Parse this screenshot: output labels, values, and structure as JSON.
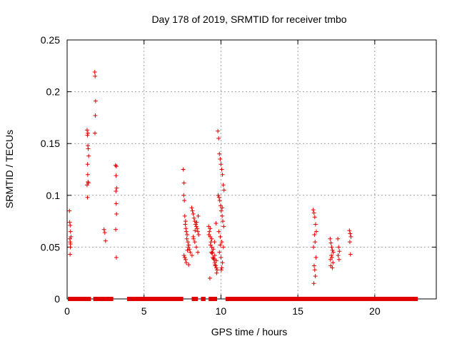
{
  "chart_data": {
    "type": "scatter",
    "title": "Day 178 of 2019, SRMTID for receiver tmbo",
    "xlabel": "GPS time / hours",
    "ylabel": "SRMTID / TECUs",
    "xlim": [
      0,
      24
    ],
    "ylim": [
      0,
      0.25
    ],
    "xticks": [
      0,
      5,
      10,
      15,
      20
    ],
    "yticks": [
      0,
      0.05,
      0.1,
      0.15,
      0.2,
      0.25
    ],
    "xtick_labels": [
      "0",
      "5",
      "10",
      "15",
      "20"
    ],
    "ytick_labels": [
      "0",
      "0.05",
      "0.1",
      "0.15",
      "0.2",
      "0.25"
    ],
    "grid": true,
    "marker": "+",
    "color": "#e00000",
    "series": [
      {
        "name": "SRMTID",
        "x": [
          0.15,
          0.17,
          0.2,
          0.22,
          0.25,
          0.18,
          0.2,
          0.22,
          0.21,
          0.19,
          1.3,
          1.32,
          1.35,
          1.37,
          1.4,
          1.33,
          1.34,
          1.36,
          1.38,
          1.3,
          1.32,
          1.35,
          1.8,
          1.82,
          1.85,
          1.83,
          1.81,
          2.4,
          2.45,
          2.5,
          3.15,
          3.2,
          3.18,
          3.22,
          3.17,
          3.19,
          3.21,
          3.16,
          3.2,
          7.55,
          7.6,
          7.58,
          7.62,
          7.65,
          7.7,
          7.68,
          7.72,
          7.75,
          7.8,
          7.78,
          7.85,
          7.9,
          7.88,
          7.95,
          8.0,
          7.6,
          7.65,
          7.7,
          7.75,
          7.82,
          7.9,
          8.1,
          8.15,
          8.2,
          8.25,
          8.3,
          8.35,
          8.4,
          8.45,
          8.5,
          8.55,
          8.2,
          8.3,
          8.4,
          8.5,
          8.12,
          8.22,
          8.32,
          8.42,
          8.52,
          9.2,
          9.25,
          9.3,
          9.35,
          9.4,
          9.45,
          9.5,
          9.55,
          9.6,
          9.65,
          9.7,
          9.75,
          9.3,
          9.4,
          9.5,
          9.6,
          9.7,
          9.22,
          9.32,
          9.42,
          9.52,
          9.62,
          9.72,
          9.28,
          9.38,
          9.48,
          9.58,
          9.68,
          9.8,
          9.85,
          9.9,
          9.95,
          10.0,
          10.05,
          10.1,
          10.15,
          10.2,
          9.82,
          9.88,
          9.92,
          9.98,
          10.02,
          10.08,
          10.12,
          10.18,
          9.86,
          9.96,
          10.06,
          10.16,
          9.9,
          10.0,
          10.1,
          10.05,
          10.02,
          9.95,
          10.08,
          16.0,
          16.05,
          16.1,
          16.15,
          16.2,
          16.08,
          16.12,
          16.02,
          16.18,
          16.06,
          16.1,
          16.14,
          16.04,
          17.1,
          17.15,
          17.2,
          17.25,
          17.3,
          17.18,
          17.22,
          17.12,
          17.28,
          17.14,
          17.24,
          17.6,
          17.65,
          17.7,
          17.62,
          17.68,
          18.35,
          18.4,
          18.45,
          18.38,
          18.42
        ],
        "y": [
          0.085,
          0.074,
          0.071,
          0.065,
          0.06,
          0.058,
          0.055,
          0.053,
          0.05,
          0.043,
          0.163,
          0.158,
          0.148,
          0.145,
          0.138,
          0.13,
          0.12,
          0.113,
          0.112,
          0.11,
          0.098,
          0.16,
          0.219,
          0.215,
          0.191,
          0.177,
          0.16,
          0.067,
          0.064,
          0.056,
          0.129,
          0.128,
          0.119,
          0.107,
          0.104,
          0.092,
          0.082,
          0.067,
          0.04,
          0.125,
          0.112,
          0.1,
          0.095,
          0.08,
          0.075,
          0.072,
          0.068,
          0.065,
          0.062,
          0.058,
          0.055,
          0.052,
          0.05,
          0.048,
          0.045,
          0.042,
          0.04,
          0.038,
          0.035,
          0.047,
          0.033,
          0.088,
          0.085,
          0.082,
          0.078,
          0.075,
          0.072,
          0.07,
          0.068,
          0.065,
          0.062,
          0.06,
          0.055,
          0.05,
          0.045,
          0.042,
          0.058,
          0.066,
          0.074,
          0.08,
          0.07,
          0.065,
          0.06,
          0.055,
          0.05,
          0.045,
          0.04,
          0.038,
          0.035,
          0.032,
          0.03,
          0.028,
          0.068,
          0.058,
          0.048,
          0.042,
          0.037,
          0.062,
          0.052,
          0.044,
          0.039,
          0.033,
          0.025,
          0.02,
          0.045,
          0.04,
          0.055,
          0.073,
          0.162,
          0.155,
          0.14,
          0.135,
          0.13,
          0.125,
          0.12,
          0.11,
          0.105,
          0.1,
          0.098,
          0.095,
          0.09,
          0.085,
          0.08,
          0.075,
          0.07,
          0.065,
          0.06,
          0.055,
          0.05,
          0.045,
          0.04,
          0.035,
          0.03,
          0.028,
          0.052,
          0.088,
          0.086,
          0.083,
          0.079,
          0.072,
          0.065,
          0.062,
          0.055,
          0.05,
          0.04,
          0.032,
          0.028,
          0.022,
          0.015,
          0.058,
          0.054,
          0.05,
          0.047,
          0.045,
          0.042,
          0.04,
          0.038,
          0.035,
          0.032,
          0.03,
          0.058,
          0.05,
          0.046,
          0.042,
          0.038,
          0.066,
          0.063,
          0.06,
          0.055,
          0.043
        ]
      },
      {
        "name": "baseline",
        "x_ranges": [
          [
            0.05,
            1.55
          ],
          [
            1.7,
            3.0
          ],
          [
            3.9,
            7.55
          ],
          [
            8.1,
            8.5
          ],
          [
            8.7,
            9.0
          ],
          [
            9.2,
            9.75
          ],
          [
            10.3,
            22.8
          ]
        ],
        "x_start": [
          0.15,
          1.3,
          3.15,
          7.55,
          8.1,
          8.7,
          9.2,
          10.3
        ],
        "y": 0
      }
    ]
  }
}
